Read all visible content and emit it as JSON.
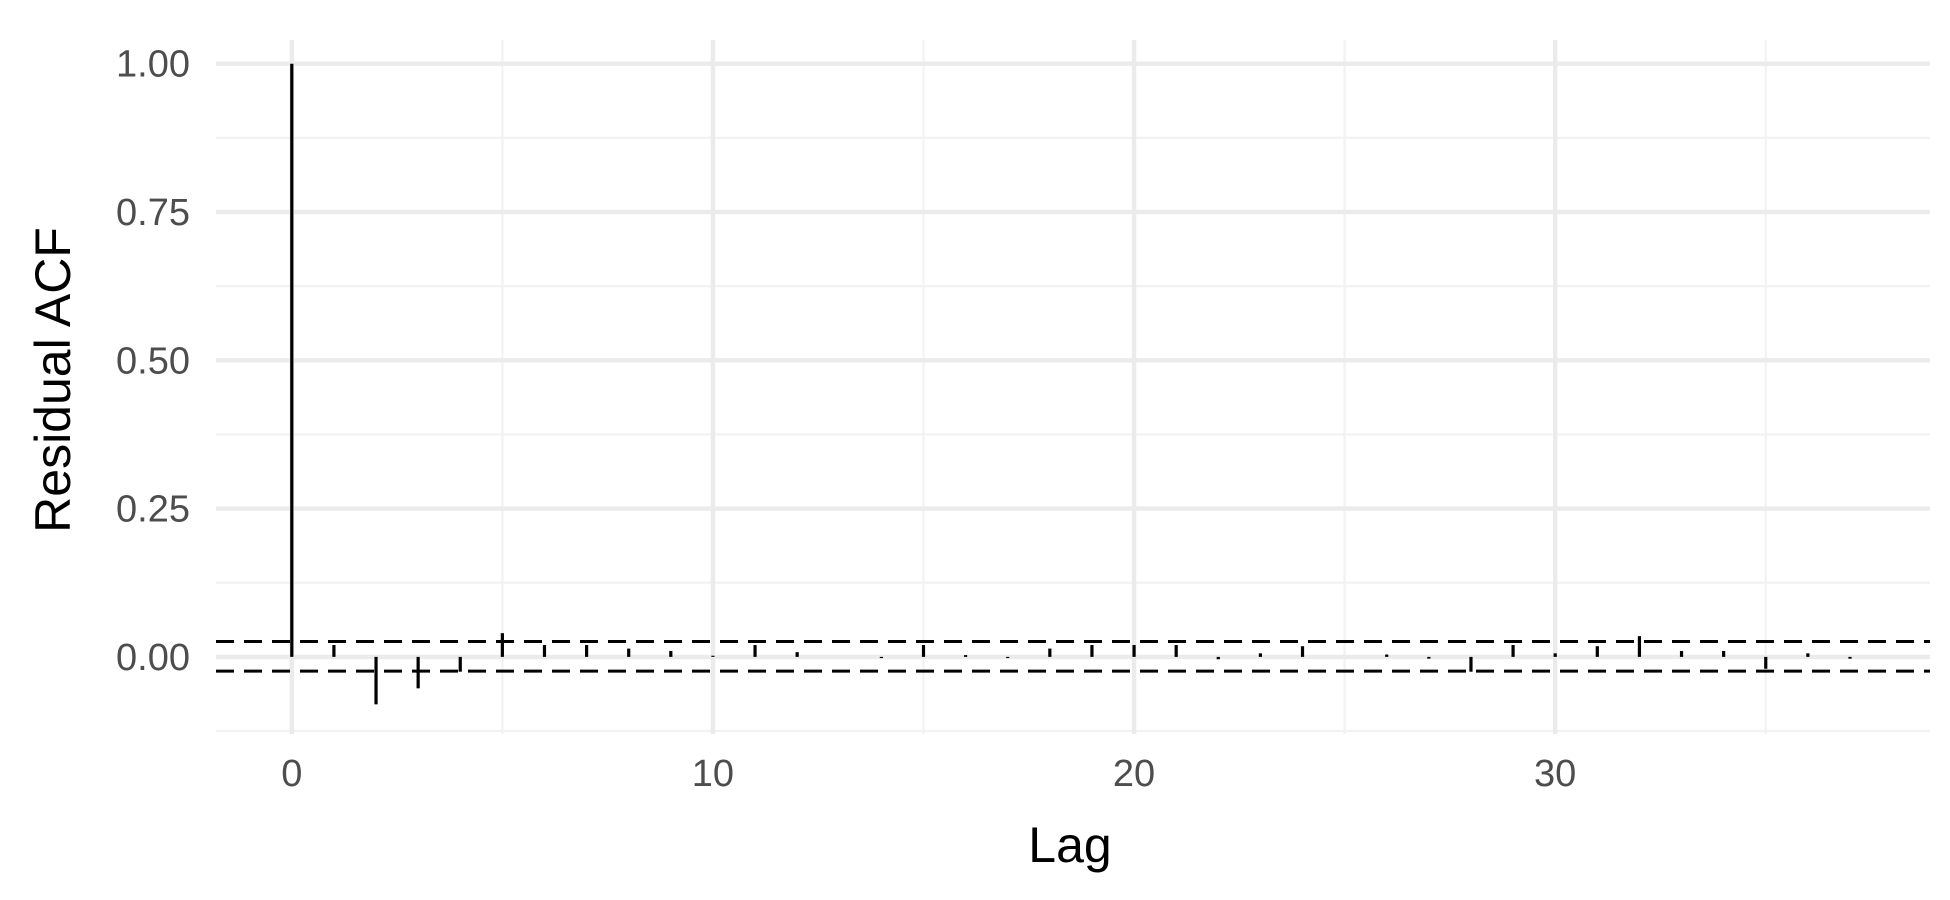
{
  "chart_data": {
    "type": "bar",
    "subtype": "acf-lollipop",
    "xlabel": "Lag",
    "ylabel": "Residual ACF",
    "xlim": [
      -1.8,
      38.9
    ],
    "ylim": [
      -0.13,
      1.04
    ],
    "x_ticks": [
      {
        "value": 0,
        "label": "0"
      },
      {
        "value": 10,
        "label": "10"
      },
      {
        "value": 20,
        "label": "20"
      },
      {
        "value": 30,
        "label": "30"
      }
    ],
    "y_ticks": [
      {
        "value": 0,
        "label": "0.00"
      },
      {
        "value": 0.25,
        "label": "0.25"
      },
      {
        "value": 0.5,
        "label": "0.50"
      },
      {
        "value": 0.75,
        "label": "0.75"
      },
      {
        "value": 1.0,
        "label": "1.00"
      }
    ],
    "confidence_bounds": [
      0.026,
      -0.024
    ],
    "grid": true,
    "colors": {
      "stem": "#000000",
      "bound": "#000000",
      "grid_major": "#ebebeb",
      "grid_minor": "#f2f2f2",
      "tick_text": "#4d4d4d",
      "title_text": "#000000"
    },
    "lags": [
      0,
      1,
      2,
      3,
      4,
      5,
      6,
      7,
      8,
      9,
      10,
      11,
      12,
      13,
      14,
      15,
      16,
      17,
      18,
      19,
      20,
      21,
      22,
      23,
      24,
      25,
      26,
      27,
      28,
      29,
      30,
      31,
      32,
      33,
      34,
      35,
      36,
      37
    ],
    "values": [
      1.0,
      0.02,
      -0.08,
      -0.053,
      -0.025,
      0.04,
      0.02,
      0.02,
      0.014,
      0.01,
      0.002,
      0.02,
      0.008,
      0.0,
      -0.002,
      0.02,
      0.003,
      -0.002,
      0.014,
      0.02,
      0.02,
      0.02,
      -0.004,
      0.006,
      0.018,
      0.0,
      0.004,
      -0.003,
      -0.025,
      0.02,
      0.006,
      0.018,
      0.035,
      0.01,
      0.01,
      -0.02,
      0.006,
      -0.003
    ]
  }
}
